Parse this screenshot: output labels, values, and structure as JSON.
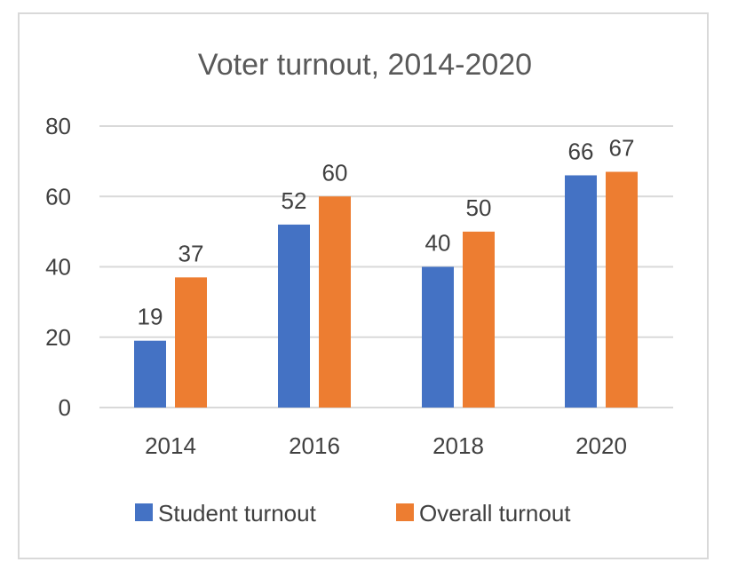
{
  "chart_data": {
    "type": "bar",
    "title": "Voter turnout, 2014-2020",
    "xlabel": "",
    "ylabel": "",
    "categories": [
      "2014",
      "2016",
      "2018",
      "2020"
    ],
    "series": [
      {
        "name": "Student turnout",
        "values": [
          19,
          52,
          40,
          66
        ],
        "color": "#4472C4"
      },
      {
        "name": "Overall turnout",
        "values": [
          37,
          60,
          50,
          67
        ],
        "color": "#ED7D31"
      }
    ],
    "ylim": [
      0,
      80
    ],
    "yticks": [
      "0",
      "20",
      "40",
      "60",
      "80"
    ],
    "grid": true,
    "legend": "bottom",
    "data_labels": true
  }
}
